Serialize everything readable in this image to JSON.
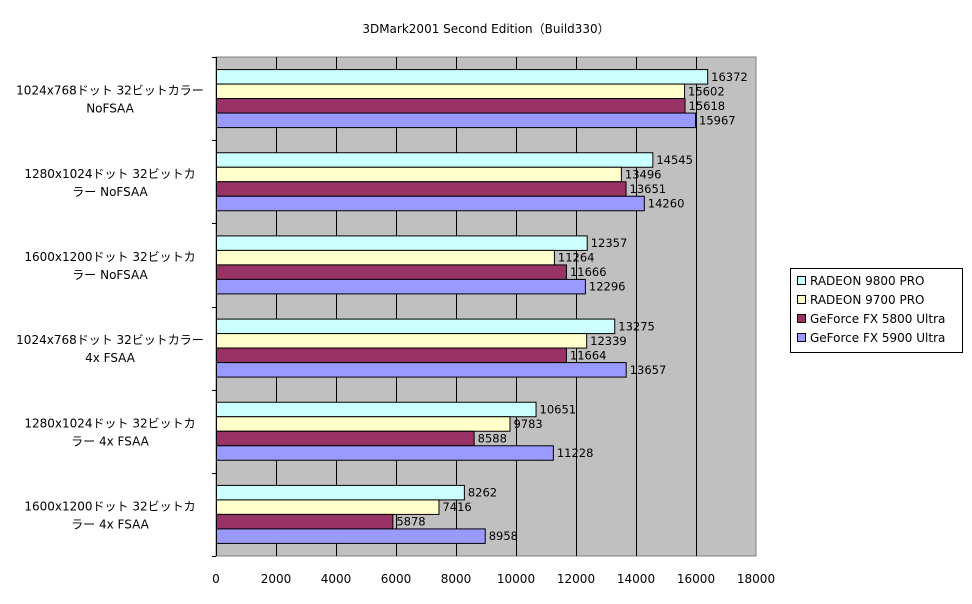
{
  "chart_data": {
    "type": "bar",
    "orientation": "horizontal",
    "title": "3DMark2001 Second Edition（Build330）",
    "xlabel": "",
    "ylabel": "",
    "xlim": [
      0,
      18000
    ],
    "ticks": [
      0,
      2000,
      4000,
      6000,
      8000,
      10000,
      12000,
      14000,
      16000,
      18000
    ],
    "categories": [
      [
        "1024x768ドット 32ビットカラー",
        "NoFSAA"
      ],
      [
        "1280x1024ドット 32ビットカ",
        "ラー NoFSAA"
      ],
      [
        "1600x1200ドット 32ビットカ",
        "ラー NoFSAA"
      ],
      [
        "1024x768ドット 32ビットカラー",
        "4x FSAA"
      ],
      [
        "1280x1024ドット 32ビットカ",
        "ラー 4x FSAA"
      ],
      [
        "1600x1200ドット 32ビットカ",
        "ラー 4x FSAA"
      ]
    ],
    "series": [
      {
        "name": "RADEON 9800 PRO",
        "color": "#ccffff",
        "values": [
          16372,
          14545,
          12357,
          13275,
          10651,
          8262
        ]
      },
      {
        "name": "RADEON 9700 PRO",
        "color": "#ffffcc",
        "values": [
          15602,
          13496,
          11264,
          12339,
          9783,
          7416
        ]
      },
      {
        "name": "GeForce FX 5800 Ultra",
        "color": "#993366",
        "values": [
          15618,
          13651,
          11666,
          11664,
          8588,
          5878
        ]
      },
      {
        "name": "GeForce FX 5900 Ultra",
        "color": "#9999ff",
        "values": [
          15967,
          14260,
          12296,
          13657,
          11228,
          8958
        ]
      }
    ],
    "grid": "vertical",
    "plot_background": "#c0c0c0",
    "legend_position": "right"
  }
}
